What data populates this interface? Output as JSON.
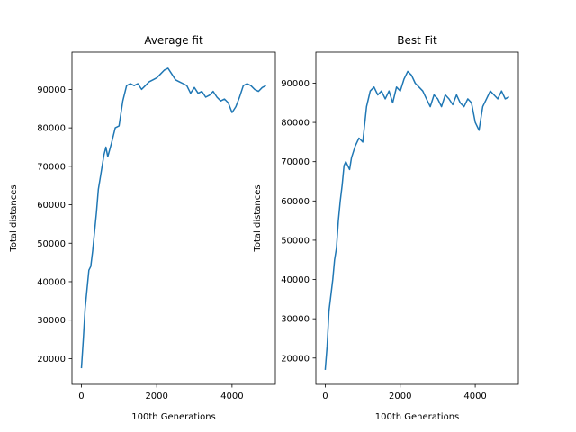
{
  "chart_data": [
    {
      "type": "line",
      "title": "Average fit",
      "xlabel": "100th Generations",
      "ylabel": "Total distances",
      "xlim": [
        -250,
        5150
      ],
      "ylim": [
        13300,
        99700
      ],
      "xticks": [
        0,
        2000,
        4000
      ],
      "yticks": [
        20000,
        30000,
        40000,
        50000,
        60000,
        70000,
        80000,
        90000
      ],
      "grid": false,
      "color": "#1f77b4",
      "series": [
        {
          "x": [
            0,
            50,
            100,
            150,
            200,
            250,
            300,
            350,
            400,
            450,
            500,
            550,
            600,
            650,
            700,
            800,
            900,
            1000,
            1100,
            1200,
            1300,
            1400,
            1500,
            1600,
            1700,
            1800,
            1900,
            2000,
            2100,
            2200,
            2300,
            2400,
            2500,
            2600,
            2700,
            2800,
            2900,
            3000,
            3100,
            3200,
            3300,
            3400,
            3500,
            3600,
            3700,
            3800,
            3900,
            4000,
            4100,
            4200,
            4300,
            4400,
            4500,
            4600,
            4700,
            4800,
            4900
          ],
          "y": [
            17500,
            25000,
            33000,
            38000,
            43000,
            44000,
            48000,
            53000,
            58000,
            64000,
            67000,
            70000,
            73000,
            75000,
            72500,
            76000,
            80000,
            80500,
            87000,
            91000,
            91500,
            91000,
            91500,
            90000,
            91000,
            92000,
            92500,
            93000,
            94000,
            95000,
            95500,
            94000,
            92500,
            92000,
            91500,
            91000,
            89000,
            90500,
            89000,
            89500,
            88000,
            88500,
            89500,
            88000,
            87000,
            87500,
            86500,
            84000,
            85500,
            88000,
            91000,
            91500,
            91000,
            90000,
            89500,
            90500,
            91000
          ]
        }
      ]
    },
    {
      "type": "line",
      "title": "Best Fit",
      "xlabel": "100th Generations",
      "ylabel": "Total distances",
      "xlim": [
        -250,
        5150
      ],
      "ylim": [
        13300,
        97900
      ],
      "xticks": [
        0,
        2000,
        4000
      ],
      "yticks": [
        20000,
        30000,
        40000,
        50000,
        60000,
        70000,
        80000,
        90000
      ],
      "grid": false,
      "color": "#1f77b4",
      "series": [
        {
          "x": [
            0,
            50,
            100,
            150,
            200,
            250,
            300,
            350,
            400,
            450,
            500,
            550,
            600,
            650,
            700,
            800,
            900,
            1000,
            1100,
            1200,
            1300,
            1400,
            1500,
            1600,
            1700,
            1800,
            1900,
            2000,
            2100,
            2200,
            2300,
            2400,
            2500,
            2600,
            2700,
            2800,
            2900,
            3000,
            3100,
            3200,
            3300,
            3400,
            3500,
            3600,
            3700,
            3800,
            3900,
            4000,
            4100,
            4200,
            4300,
            4400,
            4500,
            4600,
            4700,
            4800,
            4900
          ],
          "y": [
            17000,
            23000,
            32000,
            36000,
            40000,
            45000,
            48000,
            55000,
            60000,
            64000,
            69000,
            70000,
            69000,
            68000,
            71000,
            74000,
            76000,
            75000,
            84000,
            88000,
            89000,
            87000,
            88000,
            86000,
            88000,
            85000,
            89000,
            88000,
            91000,
            93000,
            92000,
            90000,
            89000,
            88000,
            86000,
            84000,
            87000,
            86000,
            84000,
            87000,
            86000,
            84500,
            87000,
            85000,
            84000,
            86000,
            85000,
            80000,
            78000,
            84000,
            86000,
            88000,
            87000,
            86000,
            88000,
            86000,
            86500
          ]
        }
      ]
    }
  ]
}
